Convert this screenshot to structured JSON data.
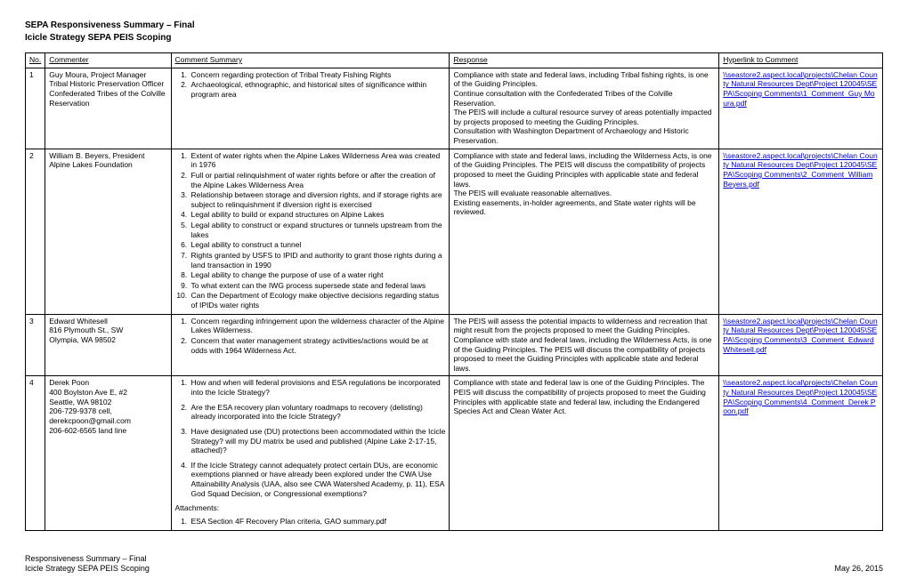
{
  "header": {
    "line1": "SEPA Responsiveness Summary – Final",
    "line2": "Icicle Strategy SEPA PEIS Scoping"
  },
  "columns": {
    "no": "No.",
    "commenter": "Commenter",
    "summary": "Comment Summary",
    "response": "Response",
    "link": "Hyperlink to Comment"
  },
  "rows": [
    {
      "no": "1",
      "commenter": "Guy Moura, Project Manager\nTribal Historic Preservation Officer\nConfederated Tribes of the Colville Reservation",
      "summary_items": [
        "Concern regarding protection of Tribal Treaty Fishing Rights",
        "Archaeological, ethnographic, and historical sites of significance within program area"
      ],
      "response": "Compliance with state and federal laws, including Tribal fishing rights, is one of the Guiding Principles.\nContinue consultation with the Confederated Tribes of the Colville Reservation.\nThe PEIS will include a cultural resource survey of areas potentially impacted by projects proposed to meeting the Guiding Principles.\nConsultation with Washington Department of Archaeology and Historic Preservation.",
      "link": "\\\\seastore2.aspect.local\\projects\\Chelan County Natural Resources Dept\\Project 120045\\SEPA\\Scoping Comments\\1_Comment_Guy Moura.pdf"
    },
    {
      "no": "2",
      "commenter": "William B. Beyers, President\nAlpine Lakes Foundation",
      "summary_items": [
        "Extent of water rights when the Alpine Lakes Wilderness Area was created in 1976",
        "Full or partial relinquishment of water rights before or after the creation of the Alpine Lakes Wilderness Area",
        "Relationship between storage and diversion rights, and if storage rights are subject to relinquishment if diversion right is exercised",
        "Legal ability to build or expand structures on Alpine Lakes",
        "Legal ability to construct or expand structures or tunnels upstream from the lakes",
        "Legal ability to construct a tunnel",
        "Rights granted by USFS to IPID and authority to grant those rights during a land transaction in 1990",
        "Legal ability to change the purpose of use of a water right",
        "To what extent can the IWG process supersede state and federal laws",
        "Can the Department of Ecology make objective decisions regarding status of IPIDs water rights"
      ],
      "response": "Compliance with state and federal laws, including the Wilderness Acts, is one of the Guiding Principles. The PEIS will discuss the compatibility of projects proposed to meet the Guiding Principles with applicable state and federal laws.\nThe PEIS will evaluate reasonable alternatives.\nExisting easements, in-holder agreements, and State water rights will be reviewed.",
      "link": "\\\\seastore2.aspect.local\\projects\\Chelan County Natural Resources Dept\\Project 120045\\SEPA\\Scoping Comments\\2_Comment_William Beyers.pdf"
    },
    {
      "no": "3",
      "commenter": "Edward Whitesell\n816 Plymouth St., SW\nOlympia, WA 98502",
      "summary_items": [
        "Concern regarding infringement upon the wilderness character of the Alpine Lakes Wilderness.",
        "Concern that water management strategy activities/actions would be at odds with 1964 Wilderness Act."
      ],
      "response": "The PEIS will assess the potential impacts to wilderness and recreation that might result from the projects proposed to meet the Guiding Principles.\nCompliance with state and federal laws, including the Wilderness Acts, is one of the Guiding Principles. The PEIS will discuss the compatibility of projects proposed to meet the Guiding Principles with applicable state and federal laws.",
      "link": "\\\\seastore2.aspect.local\\projects\\Chelan County Natural Resources Dept\\Project 120045\\SEPA\\Scoping Comments\\3_Comment_Edward Whitesell.pdf"
    },
    {
      "no": "4",
      "commenter": "Derek Poon\n400 Boylston Ave E, #2\nSeattle, WA 98102\n206-729-9378 cell,\nderekcpoon@gmail.com\n206-602-6565 land line",
      "summary_items": [
        "How and when will federal provisions and ESA regulations be incorporated into the Icicle Strategy?",
        "Are the ESA recovery plan voluntary roadmaps to recovery (delisting) already incorporated into the Icicle Strategy?",
        "Have designated use (DU) protections been accommodated within the Icicle Strategy? will my DU matrix be used and published (Alpine Lake 2-17-15, attached)?",
        "If the Icicle Strategy cannot adequately protect certain DUs, are economic exemptions planned or have already been explored under the CWA Use Attainability Analysis (UAA, also see CWA Watershed Academy, p. 11), ESA God Squad Decision, or Congressional exemptions?"
      ],
      "summary_spaced": true,
      "attachments_label": "Attachments:",
      "attachments": [
        "ESA Section 4F Recovery Plan criteria, GAO summary.pdf"
      ],
      "response": "Compliance with state and federal law is one of the Guiding Principles. The PEIS will discuss the compatibility of projects proposed to meet the Guiding Principles with applicable state and federal law, including the Endangered Species Act and Clean Water Act.",
      "link": "\\\\seastore2.aspect.local\\projects\\Chelan County Natural Resources Dept\\Project 120045\\SEPA\\Scoping Comments\\4_Comment_Derek Poon.pdf"
    }
  ],
  "footer": {
    "left1": "Responsiveness Summary – Final",
    "left2": "Icicle Strategy SEPA PEIS Scoping",
    "right": "May 26, 2015"
  }
}
